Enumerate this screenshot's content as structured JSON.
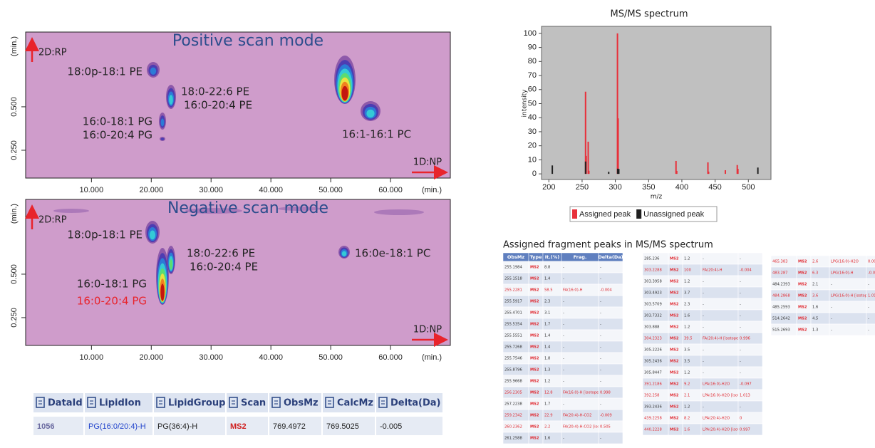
{
  "chart_data": [
    {
      "type": "contour",
      "title": "Positive scan mode",
      "y_axis_label": "2D:RP",
      "x_axis_label": "1D:NP",
      "x_unit": "(min.)",
      "y_unit": "(min.)",
      "xlim": [
        -1,
        70
      ],
      "ylim": [
        0.09,
        0.93
      ],
      "xticks": [
        {
          "value": 10,
          "label": "10.000"
        },
        {
          "value": 20,
          "label": "20.000"
        },
        {
          "value": 30,
          "label": "30.000"
        },
        {
          "value": 40,
          "label": "40.000"
        },
        {
          "value": 50,
          "label": "50.000"
        },
        {
          "value": 60,
          "label": "60.000"
        }
      ],
      "yticks": [
        {
          "value": 0.25,
          "label": "0.250"
        },
        {
          "value": 0.5,
          "label": "0.500"
        }
      ],
      "annotations": [
        {
          "text": "18:0p-18:1 PE"
        },
        {
          "text": "18:0-22:6 PE"
        },
        {
          "text": "16:0-20:4 PE"
        },
        {
          "text": "16:0-18:1 PG"
        },
        {
          "text": "16:0-20:4 PG"
        },
        {
          "text": "16:1-16:1 PC"
        }
      ]
    },
    {
      "type": "contour",
      "title": "Negative scan mode",
      "y_axis_label": "2D:RP",
      "x_axis_label": "1D:NP",
      "x_unit": "(min.)",
      "y_unit": "(min.)",
      "xlim": [
        -1,
        70
      ],
      "ylim": [
        0.09,
        0.93
      ],
      "xticks": [
        {
          "value": 10,
          "label": "10.000"
        },
        {
          "value": 20,
          "label": "20.000"
        },
        {
          "value": 30,
          "label": "30.000"
        },
        {
          "value": 40,
          "label": "40.000"
        },
        {
          "value": 50,
          "label": "50.000"
        },
        {
          "value": 60,
          "label": "60.000"
        }
      ],
      "yticks": [
        {
          "value": 0.25,
          "label": "0.250"
        },
        {
          "value": 0.5,
          "label": "0.500"
        }
      ],
      "annotations": [
        {
          "text": "18:0p-18:1 PE"
        },
        {
          "text": "18:0-22:6 PE"
        },
        {
          "text": "16:0-20:4 PE"
        },
        {
          "text": "16:0-18:1 PG"
        },
        {
          "text": "16:0-20:4 PG",
          "color": "#e8242c"
        },
        {
          "text": "16:0e-18:1 PC"
        }
      ]
    },
    {
      "type": "bar",
      "title": "MS/MS spectrum",
      "x_label": "m/z",
      "y_label": "intensity",
      "xlim": [
        189,
        534
      ],
      "ylim": [
        -4,
        105
      ],
      "xticks": [
        200,
        250,
        300,
        350,
        400,
        450,
        500
      ],
      "yticks": [
        0,
        10,
        20,
        30,
        40,
        50,
        60,
        70,
        80,
        90,
        100
      ],
      "legend": "bottom",
      "series": [
        {
          "name": "Assigned peak",
          "color": "#e8303a",
          "x": [
            255.2,
            256.2,
            259.2,
            260.2,
            303.2,
            304.2,
            391.2,
            392.3,
            439.2,
            440.2,
            465.4,
            483.3,
            484.3
          ],
          "values": [
            58.5,
            12.8,
            22.9,
            2.2,
            100,
            39.5,
            9.2,
            2.1,
            8.2,
            1.6,
            2.6,
            6.3,
            3.6
          ]
        },
        {
          "name": "Unassigned peak",
          "color": "#202020",
          "x": [
            205.2,
            255.2,
            290,
            303.5,
            305.2,
            514.3
          ],
          "values": [
            6,
            8.8,
            1.5,
            3.7,
            3.5,
            4.5
          ]
        }
      ]
    }
  ],
  "fragment_table": {
    "title": "Assigned fragment peaks in MS/MS spectrum",
    "columns": [
      "ObsMz",
      "Type",
      "It.(%)",
      "Frag.",
      "Delta(Da)"
    ],
    "blocks": [
      [
        [
          "255.1984",
          "MS2",
          "8.8",
          "-",
          "-"
        ],
        [
          "255.1518",
          "MS2",
          "1.4",
          "-",
          "-"
        ],
        [
          "255.2281",
          "MS2",
          "58.5",
          "FA(16:0)-H",
          "-0.004"
        ],
        [
          "255.5917",
          "MS2",
          "2.3",
          "-",
          "-"
        ],
        [
          "255.4701",
          "MS2",
          "3.1",
          "-",
          "-"
        ],
        [
          "255.5354",
          "MS2",
          "1.7",
          "-",
          "-"
        ],
        [
          "255.5551",
          "MS2",
          "1.4",
          "-",
          "-"
        ],
        [
          "255.7268",
          "MS2",
          "1.4",
          "-",
          "-"
        ],
        [
          "255.7546",
          "MS2",
          "1.8",
          "-",
          "-"
        ],
        [
          "255.8796",
          "MS2",
          "1.3",
          "-",
          "-"
        ],
        [
          "255.9668",
          "MS2",
          "1.2",
          "-",
          "-"
        ],
        [
          "256.2305",
          "MS2",
          "12.8",
          "FA(16:0)-H [isotope]",
          "0.998"
        ],
        [
          "257.2238",
          "MS2",
          "1.7",
          "-",
          "-"
        ],
        [
          "259.2342",
          "MS2",
          "22.9",
          "FA(20:4)-H-CO2",
          "-0.009"
        ],
        [
          "260.2362",
          "MS2",
          "2.2",
          "FA(20:4)-H-CO2 [isotope]",
          "0.505"
        ],
        [
          "261.2588",
          "MS2",
          "1.6",
          "-",
          "-"
        ]
      ],
      [
        [
          "285.236",
          "MS2",
          "1.2",
          "-",
          "-"
        ],
        [
          "303.2288",
          "MS2",
          "100",
          "FA(20:4)-H",
          "-0.004"
        ],
        [
          "303.3958",
          "MS2",
          "1.2",
          "-",
          "-"
        ],
        [
          "303.4923",
          "MS2",
          "3.7",
          "-",
          "-"
        ],
        [
          "303.5709",
          "MS2",
          "2.3",
          "-",
          "-"
        ],
        [
          "303.7332",
          "MS2",
          "1.6",
          "-",
          "-"
        ],
        [
          "303.888",
          "MS2",
          "1.2",
          "-",
          "-"
        ],
        [
          "304.2323",
          "MS2",
          "39.5",
          "FA(20:4)-H [isotope]",
          "0.996"
        ],
        [
          "305.2226",
          "MS2",
          "3.5",
          "-",
          "-"
        ],
        [
          "305.2436",
          "MS2",
          "3.5",
          "-",
          "-"
        ],
        [
          "305.8447",
          "MS2",
          "1.2",
          "-",
          "-"
        ],
        [
          "391.2186",
          "MS2",
          "9.2",
          "LPA(16:0)-H2O",
          "-0.097"
        ],
        [
          "392.258",
          "MS2",
          "2.1",
          "LPA(16:0)-H2O [isotope]",
          "1.013"
        ],
        [
          "393.2436",
          "MS2",
          "1.2",
          "-",
          "-"
        ],
        [
          "439.2258",
          "MS2",
          "8.2",
          "LPA(20:4)-H2O",
          "0"
        ],
        [
          "440.2228",
          "MS2",
          "1.6",
          "LPA(20:4)-H2O [isotope]",
          "0.997"
        ]
      ],
      [
        [
          "465.383",
          "MS2",
          "2.6",
          "LPG(16:0)-H2O",
          "0.001"
        ],
        [
          "483.287",
          "MS2",
          "6.3",
          "LPG(16:0)-H",
          "-0.006"
        ],
        [
          "484.2393",
          "MS2",
          "2.1",
          "-",
          "-"
        ],
        [
          "484.2868",
          "MS2",
          "3.6",
          "LPG(16:0)-H [isotope]",
          "1.014"
        ],
        [
          "485.2593",
          "MS2",
          "1.6",
          "-",
          "-"
        ],
        [
          "514.2642",
          "MS2",
          "4.5",
          "-",
          "-"
        ],
        [
          "515.2693",
          "MS2",
          "1.3",
          "-",
          "-"
        ]
      ]
    ]
  },
  "result_table": {
    "columns": [
      "DataId",
      "LipidIon",
      "LipidGroup",
      "Scan",
      "ObsMz",
      "CalcMz",
      "Delta(Da)"
    ],
    "rows": [
      [
        "1056",
        "PG(16:0/20:4)-H",
        "PG(36:4)-H",
        "MS2",
        "769.4972",
        "769.5025",
        "-0.005"
      ]
    ]
  }
}
